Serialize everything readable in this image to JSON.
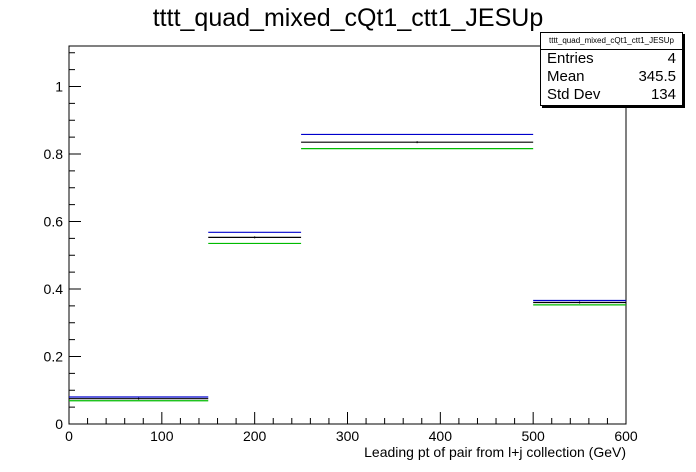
{
  "chart_data": {
    "type": "step",
    "title": "tttt_quad_mixed_cQt1_ctt1_JESUp",
    "xlabel": "Leading pt of pair from l+j collection (GeV)",
    "ylabel": "",
    "xlim": [
      0,
      600
    ],
    "ylim": [
      0,
      1.12
    ],
    "x_ticks": [
      "0",
      "100",
      "200",
      "300",
      "400",
      "500",
      "600"
    ],
    "y_ticks": [
      "0",
      "0.2",
      "0.4",
      "0.6",
      "0.8",
      "1"
    ],
    "bin_edges": [
      0,
      150,
      250,
      500,
      600
    ],
    "series": [
      {
        "color": "#000000",
        "values": [
          0.075,
          0.553,
          0.835,
          0.36
        ]
      },
      {
        "color": "#0000cc",
        "values": [
          0.08,
          0.568,
          0.858,
          0.366
        ]
      },
      {
        "color": "#00bb00",
        "values": [
          0.069,
          0.535,
          0.816,
          0.353
        ]
      }
    ],
    "stats": {
      "name": "tttt_quad_mixed_cQt1_ctt1_JESUp",
      "rows": [
        {
          "label": "Entries",
          "value": "4"
        },
        {
          "label": "Mean",
          "value": "345.5"
        },
        {
          "label": "Std Dev",
          "value": "134"
        }
      ]
    }
  }
}
